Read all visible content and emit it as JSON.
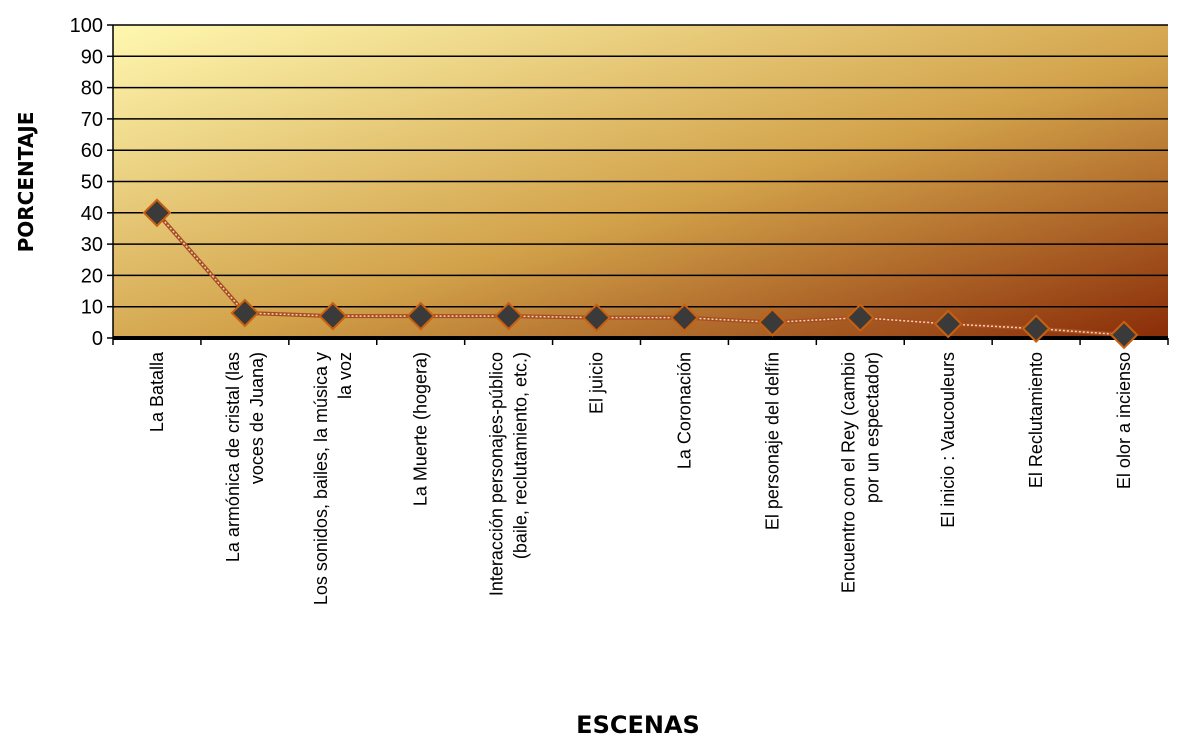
{
  "chart_data": {
    "type": "line",
    "title": "",
    "xlabel": "ESCENAS",
    "ylabel": "PORCENTAJE",
    "ylim": [
      0,
      100
    ],
    "yticks": [
      0,
      10,
      20,
      30,
      40,
      50,
      60,
      70,
      80,
      90,
      100
    ],
    "grid": true,
    "legend": "none",
    "categories": [
      [
        "La Batalla"
      ],
      [
        "La armónica de cristal (las",
        "voces de Juana)"
      ],
      [
        "Los sonidos, bailes, la música y",
        "la voz"
      ],
      [
        "La Muerte (hogera)"
      ],
      [
        "Interacción personajes-público",
        "(baile, reclutamiento, etc.)"
      ],
      [
        "El juicio"
      ],
      [
        "La Coronación"
      ],
      [
        "El personaje del delfín"
      ],
      [
        "Encuentro con el Rey (cambio",
        "por un espectador)"
      ],
      [
        "El inicio : Vaucouleurs"
      ],
      [
        "El Reclutamiento"
      ],
      [
        "El olor a incienso"
      ]
    ],
    "series": [
      {
        "values": [
          40,
          8,
          7,
          7,
          7,
          6.5,
          6.5,
          5,
          6.5,
          4.5,
          3,
          1
        ]
      }
    ],
    "colors": {
      "plot_gradient_light": "#fff8b0",
      "plot_gradient_mid": "#d2a24a",
      "plot_gradient_dark": "#8a2c08",
      "grid": "#000000",
      "line": "#a84c24",
      "marker_fill": "#3a3a3a",
      "marker_stroke": "#c86010"
    }
  }
}
